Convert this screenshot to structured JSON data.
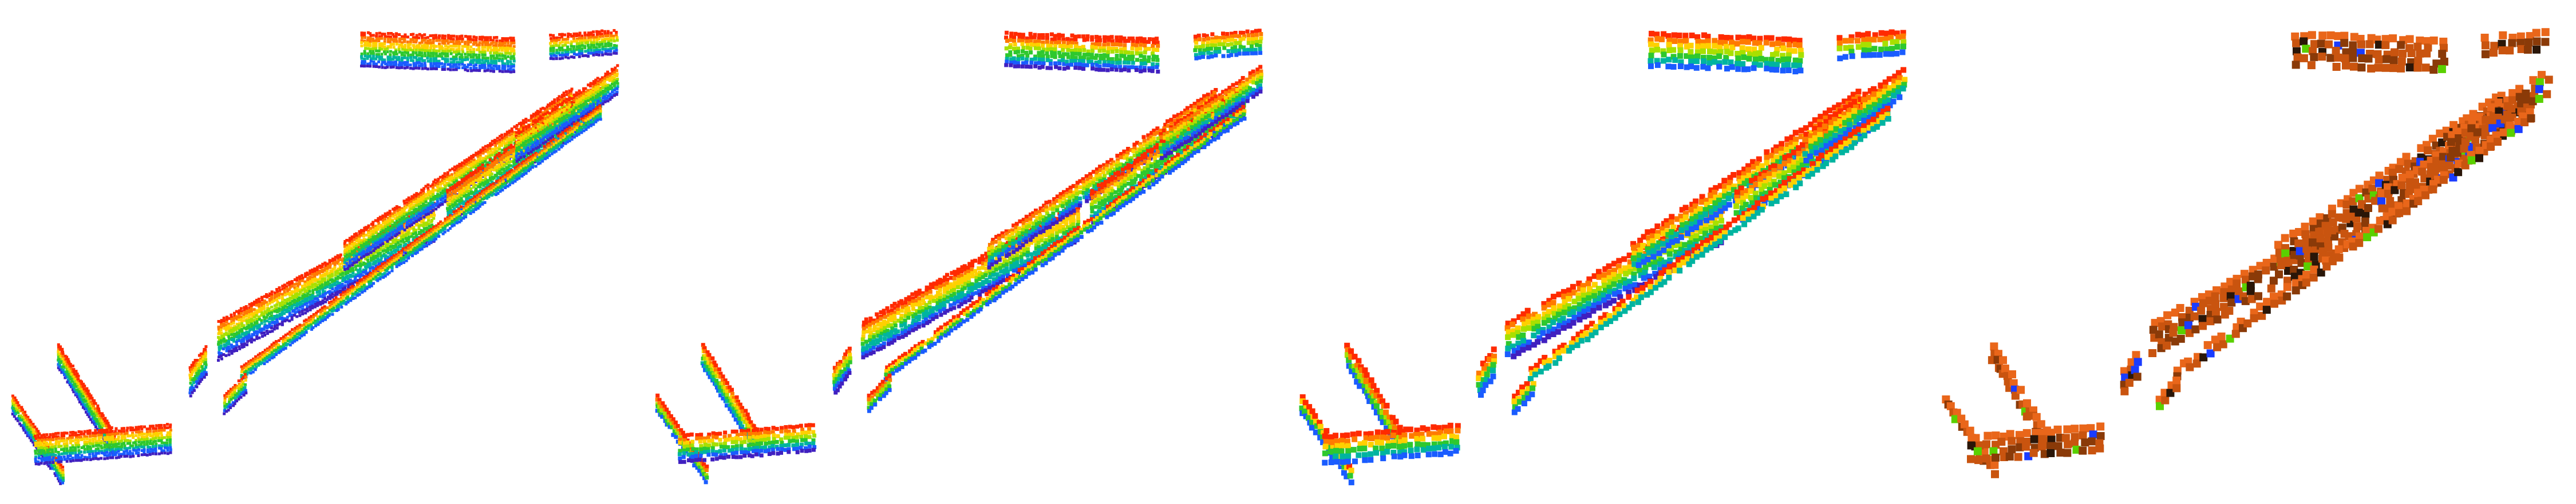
{
  "figure": {
    "panels": [
      {
        "id": "p1",
        "style": "rainbow-fine"
      },
      {
        "id": "p2",
        "style": "rainbow-medium"
      },
      {
        "id": "p3",
        "style": "rainbow-coarse"
      },
      {
        "id": "p4",
        "style": "orange-voxels"
      }
    ],
    "palettes": {
      "rainbow": [
        "#ff2a00",
        "#ff7a00",
        "#ffd000",
        "#a8e000",
        "#2ec82e",
        "#00b4a0",
        "#1a5cff",
        "#4020c0"
      ],
      "orange": [
        "#e9661a",
        "#c9540f",
        "#8a3a08",
        "#2a1608",
        "#5ad000",
        "#1a3cff"
      ]
    },
    "background": "#ffffff"
  }
}
